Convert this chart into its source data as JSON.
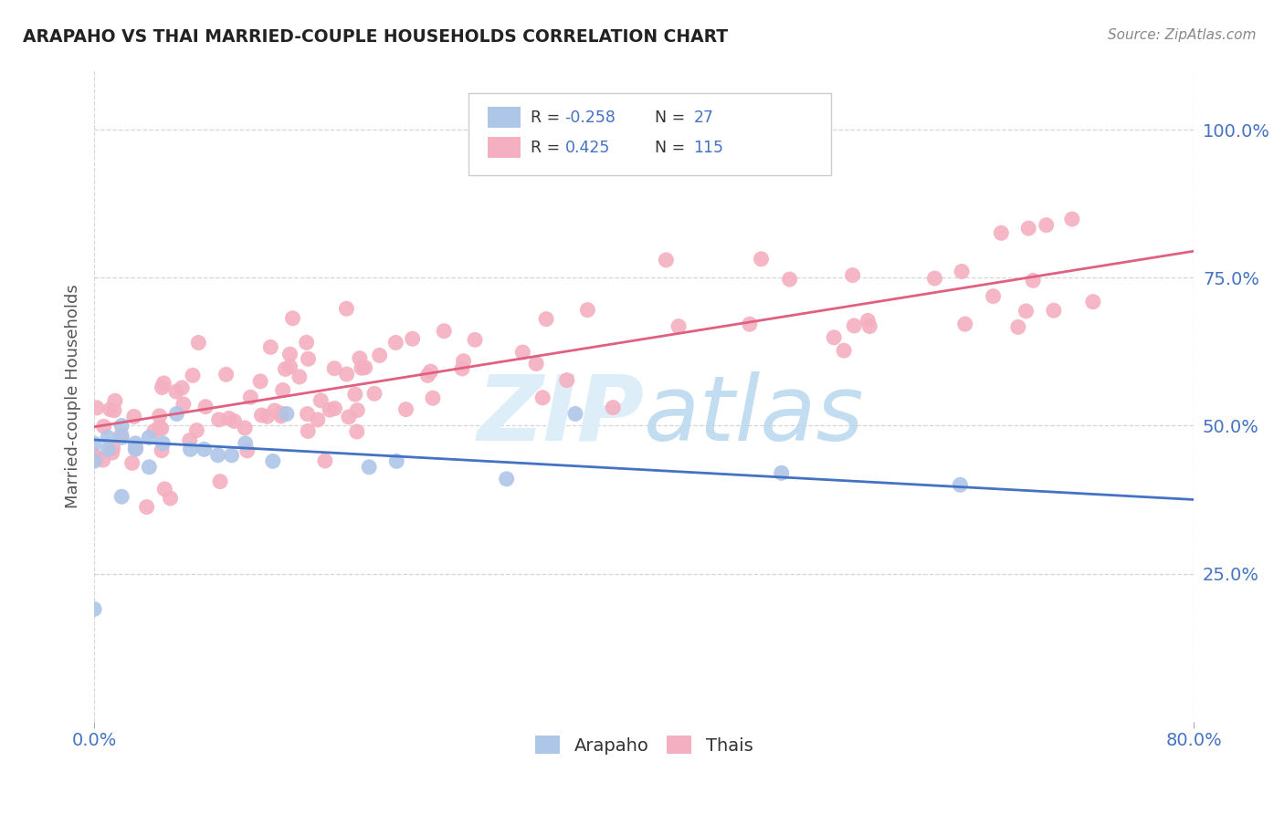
{
  "title": "ARAPAHO VS THAI MARRIED-COUPLE HOUSEHOLDS CORRELATION CHART",
  "source": "Source: ZipAtlas.com",
  "ylabel": "Married-couple Households",
  "xlim": [
    0.0,
    0.8
  ],
  "ylim": [
    0.0,
    1.1
  ],
  "yticks": [
    0.25,
    0.5,
    0.75,
    1.0
  ],
  "ytick_labels": [
    "25.0%",
    "50.0%",
    "75.0%",
    "100.0%"
  ],
  "arapaho_R": -0.258,
  "arapaho_N": 27,
  "thai_R": 0.425,
  "thai_N": 115,
  "arapaho_color": "#aec6e8",
  "thai_color": "#f4afc0",
  "arapaho_line_color": "#4472c4",
  "thai_line_color": "#e06080",
  "watermark_color": "#ddeef8",
  "background_color": "#ffffff",
  "legend_text_color": "#4472c4",
  "legend_label_color": "#333333",
  "title_color": "#222222",
  "source_color": "#888888",
  "ylabel_color": "#555555",
  "grid_color": "#cccccc",
  "tick_color": "#4472c4",
  "arapaho_line_start_y": 0.476,
  "arapaho_line_end_y": 0.375,
  "thai_line_start_y": 0.498,
  "thai_line_end_y": 0.795
}
